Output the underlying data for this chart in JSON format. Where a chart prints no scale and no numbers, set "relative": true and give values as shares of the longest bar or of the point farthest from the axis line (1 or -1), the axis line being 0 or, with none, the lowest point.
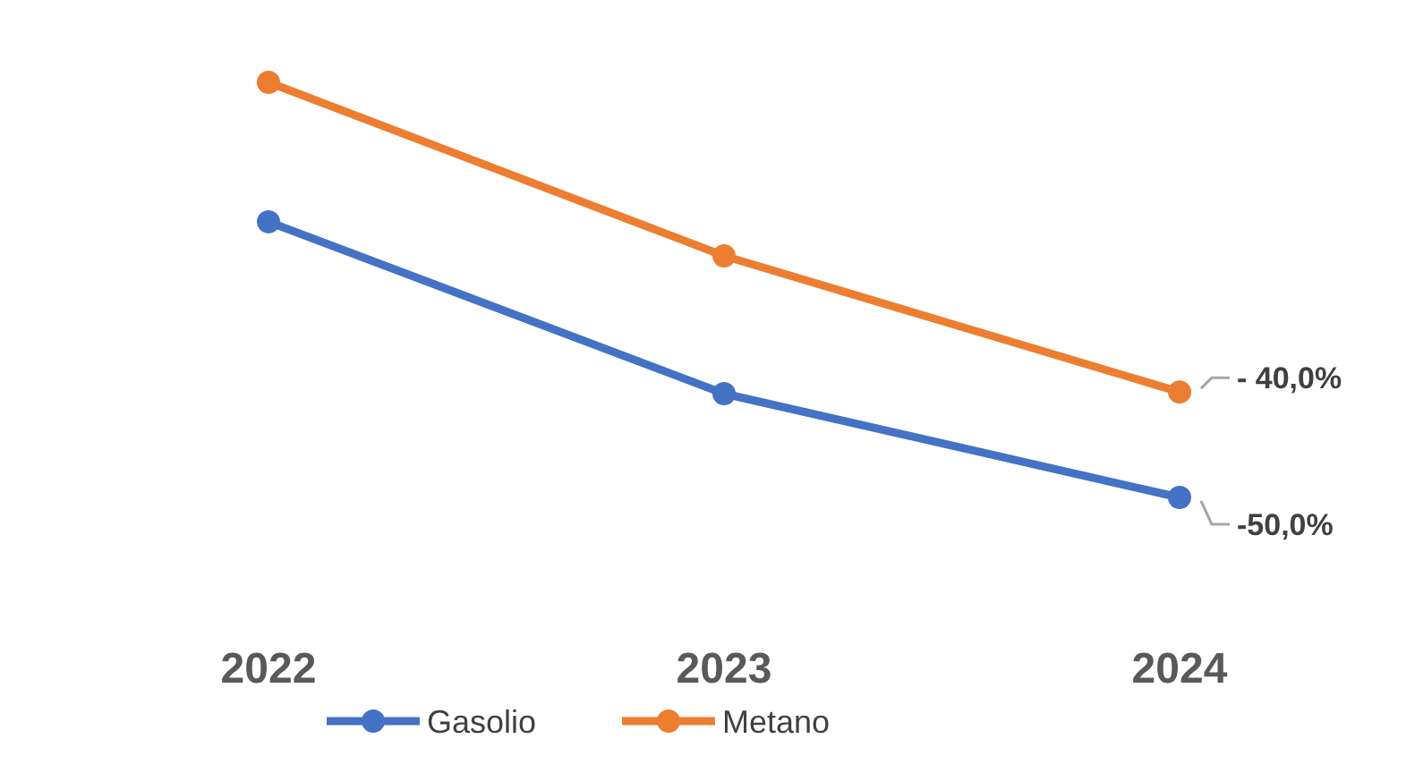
{
  "chart_data": {
    "type": "line",
    "relative": true,
    "categories": [
      "2022",
      "2023",
      "2024"
    ],
    "series": [
      {
        "name": "Gasolio",
        "color": "#4472c4",
        "values": [
          0.664,
          0.25,
          0
        ]
      },
      {
        "name": "Metano",
        "color": "#ed7d31",
        "values": [
          1,
          0.582,
          0.254
        ]
      }
    ],
    "annotations": [
      {
        "text": "- 40,0%",
        "x": "2024",
        "y": 0.254
      },
      {
        "text": "-50,0%",
        "x": "2024",
        "y": 0
      }
    ],
    "marker": "circle",
    "line_style": "solid",
    "legend": "bottom"
  }
}
